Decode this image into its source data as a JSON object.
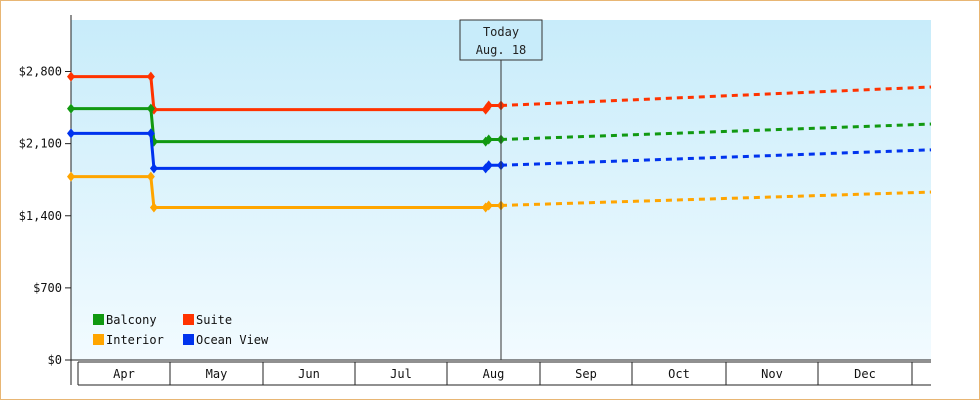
{
  "chart_data": {
    "type": "line",
    "title": "",
    "xlabel": "",
    "ylabel": "",
    "y_ticks": [
      "$0",
      "$700",
      "$1,400",
      "$2,100",
      "$2,800"
    ],
    "ylim": [
      0,
      3300
    ],
    "x_ticks": [
      "Apr",
      "May",
      "Jun",
      "Jul",
      "Aug",
      "Sep",
      "Oct",
      "Nov",
      "Dec"
    ],
    "x_range_days": [
      0,
      280
    ],
    "today_marker": {
      "line1": "Today",
      "line2": "Aug. 18",
      "day": 140
    },
    "legend": {
      "placement": "bottom-left",
      "entries": [
        {
          "label": "Balcony",
          "color": "#119911"
        },
        {
          "label": "Suite",
          "color": "#ff3300"
        },
        {
          "label": "Interior",
          "color": "#ffa500"
        },
        {
          "label": "Ocean View",
          "color": "#0033ee"
        }
      ]
    },
    "series": [
      {
        "name": "Suite",
        "color": "#ff3300",
        "solid": [
          [
            0,
            2750
          ],
          [
            26,
            2750
          ],
          [
            27,
            2430
          ],
          [
            136,
            2430
          ]
        ],
        "points": [
          [
            0,
            2750
          ],
          [
            26,
            2750
          ],
          [
            27,
            2430
          ],
          [
            135,
            2430
          ],
          [
            136,
            2470
          ],
          [
            140,
            2470
          ]
        ],
        "dashed": [
          [
            140,
            2470
          ],
          [
            280,
            2650
          ]
        ]
      },
      {
        "name": "Balcony",
        "color": "#119911",
        "solid": [
          [
            0,
            2440
          ],
          [
            26,
            2440
          ],
          [
            27,
            2120
          ],
          [
            136,
            2120
          ]
        ],
        "points": [
          [
            0,
            2440
          ],
          [
            26,
            2440
          ],
          [
            27,
            2120
          ],
          [
            135,
            2120
          ],
          [
            136,
            2140
          ],
          [
            140,
            2140
          ]
        ],
        "dashed": [
          [
            140,
            2140
          ],
          [
            280,
            2290
          ]
        ]
      },
      {
        "name": "Ocean View",
        "color": "#0033ee",
        "solid": [
          [
            0,
            2200
          ],
          [
            26,
            2200
          ],
          [
            27,
            1860
          ],
          [
            136,
            1860
          ]
        ],
        "points": [
          [
            0,
            2200
          ],
          [
            26,
            2200
          ],
          [
            27,
            1860
          ],
          [
            135,
            1860
          ],
          [
            136,
            1890
          ],
          [
            140,
            1890
          ]
        ],
        "dashed": [
          [
            140,
            1890
          ],
          [
            280,
            2040
          ]
        ]
      },
      {
        "name": "Interior",
        "color": "#ffa500",
        "solid": [
          [
            0,
            1780
          ],
          [
            26,
            1780
          ],
          [
            27,
            1480
          ],
          [
            136,
            1480
          ]
        ],
        "points": [
          [
            0,
            1780
          ],
          [
            26,
            1780
          ],
          [
            27,
            1480
          ],
          [
            135,
            1480
          ],
          [
            136,
            1500
          ],
          [
            140,
            1500
          ]
        ],
        "dashed": [
          [
            140,
            1500
          ],
          [
            280,
            1630
          ]
        ]
      }
    ]
  }
}
